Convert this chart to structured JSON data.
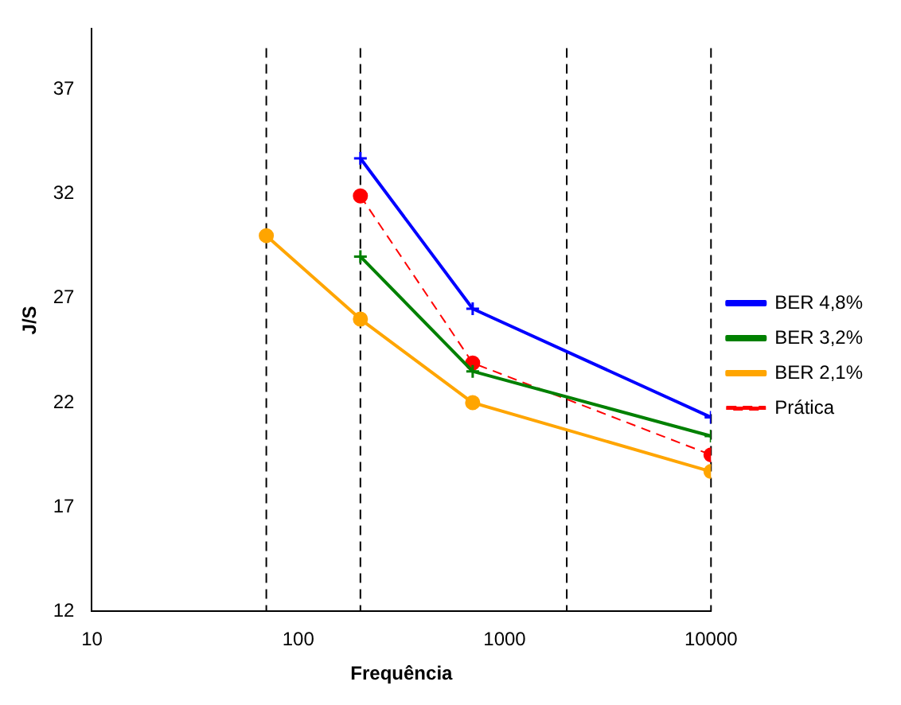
{
  "chart_data": {
    "type": "line",
    "xlabel": "Frequência",
    "ylabel": "J/S",
    "log": "x",
    "xlim": [
      10,
      10000
    ],
    "xticks": [
      10,
      100,
      1000,
      10000
    ],
    "ylim": [
      12,
      39.9
    ],
    "yticks": [
      12,
      17,
      22,
      27,
      32,
      37
    ],
    "grid": false,
    "legend": "right",
    "series": [
      {
        "name": "BER 4,8%",
        "color": "#0000ff",
        "x": [
          200,
          700,
          10000
        ],
        "values": [
          33.7,
          26.5,
          21.3
        ],
        "marker": "cross",
        "line_style": "solid"
      },
      {
        "name": "BER 3,2%",
        "color": "#008000",
        "x": [
          200,
          700,
          10000
        ],
        "values": [
          29.0,
          23.5,
          20.4
        ],
        "marker": "cross",
        "line_style": "solid"
      },
      {
        "name": "BER 2,1%",
        "color": "#ffa500",
        "x": [
          70,
          200,
          700,
          10000
        ],
        "values": [
          30.0,
          26.0,
          22.0,
          18.7
        ],
        "marker": "circle",
        "line_style": "solid"
      },
      {
        "name": "Prática",
        "color": "#ff0000",
        "x": [
          200,
          700,
          10000
        ],
        "values": [
          31.9,
          23.9,
          19.5
        ],
        "marker": "circle",
        "line_style": "dashed"
      }
    ],
    "ref_lines": [
      {
        "axis": "x",
        "value": 70,
        "color": "#000000",
        "line_style": "dashed"
      },
      {
        "axis": "x",
        "value": 200,
        "color": "#000000",
        "line_style": "dashed"
      },
      {
        "axis": "x",
        "value": 2000,
        "color": "#000000",
        "line_style": "dashed"
      },
      {
        "axis": "x",
        "value": 10000,
        "color": "#000000",
        "line_style": "dashed"
      }
    ]
  }
}
